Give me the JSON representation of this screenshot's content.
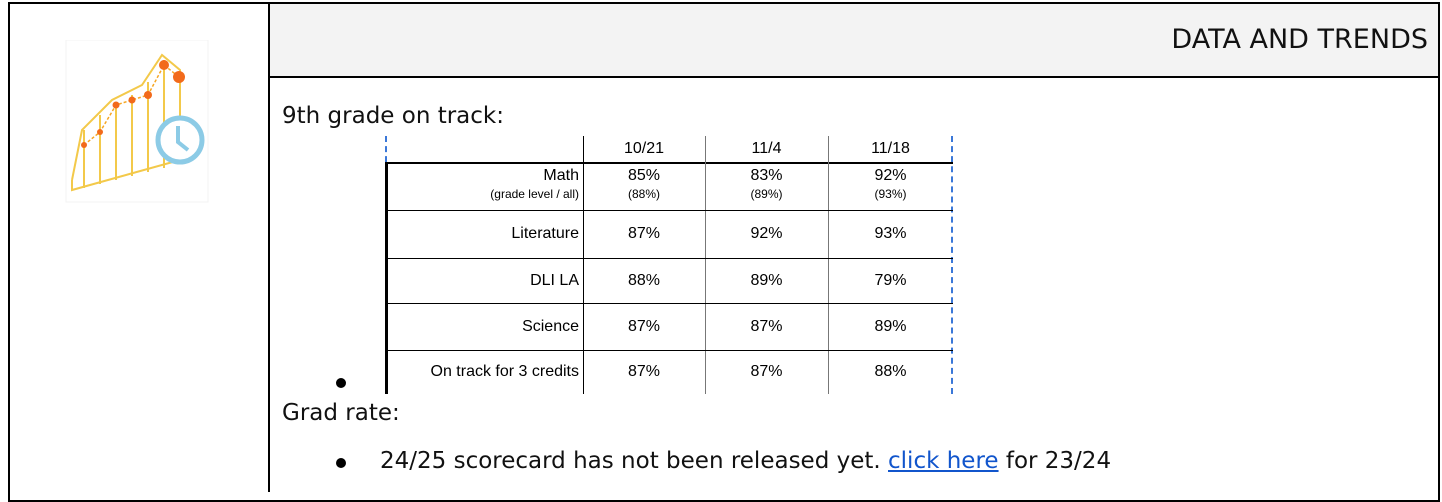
{
  "header": {
    "title": "DATA AND TRENDS"
  },
  "on_track": {
    "heading": "9th grade on track:",
    "table": {
      "columns": [
        "10/21",
        "11/4",
        "11/18"
      ],
      "rows": [
        {
          "label": "Math",
          "sublabel": "(grade level / all)",
          "values": [
            "85%",
            "83%",
            "92%"
          ],
          "subvalues": [
            "(88%)",
            "(89%)",
            "(93%)"
          ]
        },
        {
          "label": "Literature",
          "values": [
            "87%",
            "92%",
            "93%"
          ]
        },
        {
          "label": "DLI LA",
          "values": [
            "88%",
            "89%",
            "79%"
          ]
        },
        {
          "label": "Science",
          "values": [
            "87%",
            "87%",
            "89%"
          ]
        },
        {
          "label": "On track for 3 credits",
          "values": [
            "87%",
            "87%",
            "88%"
          ]
        }
      ]
    }
  },
  "grad_rate": {
    "heading": "Grad rate:",
    "bullet": {
      "text": "24/25 scorecard has not been released yet.",
      "link": "click here",
      "after": "for 23/24"
    }
  }
}
